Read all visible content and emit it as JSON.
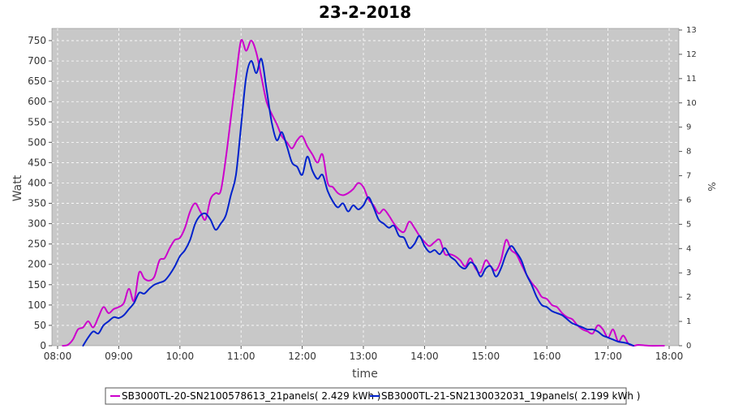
{
  "chart_data": {
    "type": "line",
    "title": "23-2-2018",
    "xlabel": "time",
    "ylabel": "Watt",
    "y2label": "%",
    "x_ticks": [
      "08:00",
      "09:00",
      "10:00",
      "11:00",
      "12:00",
      "13:00",
      "14:00",
      "15:00",
      "16:00",
      "17:00",
      "18:00"
    ],
    "xlim": [
      "08:00",
      "18:00"
    ],
    "ylim": [
      0,
      780
    ],
    "y_ticks": [
      0,
      50,
      100,
      150,
      200,
      250,
      300,
      350,
      400,
      450,
      500,
      550,
      600,
      650,
      700,
      750
    ],
    "y2lim": [
      0,
      13
    ],
    "y2_ticks": [
      0,
      1,
      2,
      3,
      4,
      5,
      6,
      7,
      8,
      9,
      10,
      11,
      12,
      13
    ],
    "grid": true,
    "legend_position": "bottom",
    "colors": {
      "plot_bg": "#c8c8c8",
      "grid": "#ffffff"
    },
    "series": [
      {
        "name": "SB3000TL-20-SN2100578613_21panels( 2.429 kWh )",
        "color": "#cc00cc",
        "points": [
          [
            "08:05",
            0
          ],
          [
            "08:10",
            2
          ],
          [
            "08:15",
            15
          ],
          [
            "08:20",
            40
          ],
          [
            "08:25",
            45
          ],
          [
            "08:30",
            60
          ],
          [
            "08:35",
            45
          ],
          [
            "08:40",
            70
          ],
          [
            "08:45",
            95
          ],
          [
            "08:50",
            80
          ],
          [
            "08:55",
            90
          ],
          [
            "09:00",
            95
          ],
          [
            "09:05",
            105
          ],
          [
            "09:10",
            140
          ],
          [
            "09:15",
            110
          ],
          [
            "09:20",
            180
          ],
          [
            "09:25",
            165
          ],
          [
            "09:30",
            160
          ],
          [
            "09:35",
            170
          ],
          [
            "09:40",
            210
          ],
          [
            "09:45",
            215
          ],
          [
            "09:50",
            240
          ],
          [
            "09:55",
            260
          ],
          [
            "10:00",
            265
          ],
          [
            "10:05",
            290
          ],
          [
            "10:10",
            330
          ],
          [
            "10:15",
            350
          ],
          [
            "10:20",
            330
          ],
          [
            "10:25",
            310
          ],
          [
            "10:30",
            360
          ],
          [
            "10:35",
            375
          ],
          [
            "10:40",
            380
          ],
          [
            "10:45",
            460
          ],
          [
            "10:50",
            560
          ],
          [
            "10:55",
            660
          ],
          [
            "11:00",
            750
          ],
          [
            "11:05",
            725
          ],
          [
            "11:10",
            750
          ],
          [
            "11:15",
            720
          ],
          [
            "11:20",
            660
          ],
          [
            "11:25",
            600
          ],
          [
            "11:30",
            570
          ],
          [
            "11:35",
            545
          ],
          [
            "11:40",
            515
          ],
          [
            "11:45",
            500
          ],
          [
            "11:50",
            485
          ],
          [
            "11:55",
            505
          ],
          [
            "12:00",
            515
          ],
          [
            "12:05",
            490
          ],
          [
            "12:10",
            470
          ],
          [
            "12:15",
            450
          ],
          [
            "12:20",
            470
          ],
          [
            "12:25",
            400
          ],
          [
            "12:30",
            390
          ],
          [
            "12:35",
            375
          ],
          [
            "12:40",
            370
          ],
          [
            "12:45",
            375
          ],
          [
            "12:50",
            385
          ],
          [
            "12:55",
            400
          ],
          [
            "13:00",
            390
          ],
          [
            "13:05",
            360
          ],
          [
            "13:10",
            345
          ],
          [
            "13:15",
            325
          ],
          [
            "13:20",
            335
          ],
          [
            "13:25",
            320
          ],
          [
            "13:30",
            300
          ],
          [
            "13:35",
            285
          ],
          [
            "13:40",
            280
          ],
          [
            "13:45",
            305
          ],
          [
            "13:50",
            290
          ],
          [
            "13:55",
            270
          ],
          [
            "14:00",
            255
          ],
          [
            "14:05",
            245
          ],
          [
            "14:10",
            255
          ],
          [
            "14:15",
            260
          ],
          [
            "14:20",
            225
          ],
          [
            "14:25",
            225
          ],
          [
            "14:30",
            220
          ],
          [
            "14:35",
            210
          ],
          [
            "14:40",
            195
          ],
          [
            "14:45",
            215
          ],
          [
            "14:50",
            190
          ],
          [
            "14:55",
            180
          ],
          [
            "15:00",
            210
          ],
          [
            "15:05",
            195
          ],
          [
            "15:10",
            185
          ],
          [
            "15:15",
            210
          ],
          [
            "15:20",
            260
          ],
          [
            "15:25",
            235
          ],
          [
            "15:30",
            225
          ],
          [
            "15:35",
            200
          ],
          [
            "15:40",
            175
          ],
          [
            "15:45",
            155
          ],
          [
            "15:50",
            140
          ],
          [
            "15:55",
            120
          ],
          [
            "16:00",
            115
          ],
          [
            "16:05",
            100
          ],
          [
            "16:10",
            95
          ],
          [
            "16:15",
            80
          ],
          [
            "16:20",
            70
          ],
          [
            "16:25",
            65
          ],
          [
            "16:30",
            50
          ],
          [
            "16:35",
            40
          ],
          [
            "16:40",
            35
          ],
          [
            "16:45",
            30
          ],
          [
            "16:50",
            50
          ],
          [
            "16:55",
            40
          ],
          [
            "17:00",
            20
          ],
          [
            "17:05",
            40
          ],
          [
            "17:10",
            10
          ],
          [
            "17:15",
            25
          ],
          [
            "17:20",
            5
          ],
          [
            "17:25",
            0
          ],
          [
            "17:30",
            2
          ],
          [
            "17:40",
            0
          ],
          [
            "17:55",
            0
          ]
        ]
      },
      {
        "name": "SB3000TL-21-SN2130032031_19panels( 2.199 kWh )",
        "color": "#0022cc",
        "points": [
          [
            "08:25",
            0
          ],
          [
            "08:30",
            20
          ],
          [
            "08:35",
            35
          ],
          [
            "08:40",
            30
          ],
          [
            "08:45",
            50
          ],
          [
            "08:50",
            60
          ],
          [
            "08:55",
            70
          ],
          [
            "09:00",
            68
          ],
          [
            "09:05",
            75
          ],
          [
            "09:10",
            90
          ],
          [
            "09:15",
            105
          ],
          [
            "09:20",
            130
          ],
          [
            "09:25",
            128
          ],
          [
            "09:30",
            140
          ],
          [
            "09:35",
            150
          ],
          [
            "09:40",
            155
          ],
          [
            "09:45",
            160
          ],
          [
            "09:50",
            175
          ],
          [
            "09:55",
            195
          ],
          [
            "10:00",
            220
          ],
          [
            "10:05",
            235
          ],
          [
            "10:10",
            260
          ],
          [
            "10:15",
            300
          ],
          [
            "10:20",
            320
          ],
          [
            "10:25",
            325
          ],
          [
            "10:30",
            310
          ],
          [
            "10:35",
            285
          ],
          [
            "10:40",
            300
          ],
          [
            "10:45",
            320
          ],
          [
            "10:50",
            370
          ],
          [
            "10:55",
            420
          ],
          [
            "11:00",
            540
          ],
          [
            "11:05",
            660
          ],
          [
            "11:10",
            700
          ],
          [
            "11:15",
            670
          ],
          [
            "11:20",
            705
          ],
          [
            "11:25",
            630
          ],
          [
            "11:30",
            550
          ],
          [
            "11:35",
            505
          ],
          [
            "11:40",
            525
          ],
          [
            "11:45",
            490
          ],
          [
            "11:50",
            450
          ],
          [
            "11:55",
            440
          ],
          [
            "12:00",
            420
          ],
          [
            "12:05",
            465
          ],
          [
            "12:10",
            430
          ],
          [
            "12:15",
            410
          ],
          [
            "12:20",
            420
          ],
          [
            "12:25",
            380
          ],
          [
            "12:30",
            355
          ],
          [
            "12:35",
            340
          ],
          [
            "12:40",
            350
          ],
          [
            "12:45",
            330
          ],
          [
            "12:50",
            345
          ],
          [
            "12:55",
            335
          ],
          [
            "13:00",
            345
          ],
          [
            "13:05",
            365
          ],
          [
            "13:10",
            340
          ],
          [
            "13:15",
            310
          ],
          [
            "13:20",
            300
          ],
          [
            "13:25",
            290
          ],
          [
            "13:30",
            295
          ],
          [
            "13:35",
            270
          ],
          [
            "13:40",
            265
          ],
          [
            "13:45",
            240
          ],
          [
            "13:50",
            250
          ],
          [
            "13:55",
            270
          ],
          [
            "14:00",
            245
          ],
          [
            "14:05",
            230
          ],
          [
            "14:10",
            235
          ],
          [
            "14:15",
            225
          ],
          [
            "14:20",
            240
          ],
          [
            "14:25",
            220
          ],
          [
            "14:30",
            210
          ],
          [
            "14:35",
            195
          ],
          [
            "14:40",
            190
          ],
          [
            "14:45",
            205
          ],
          [
            "14:50",
            195
          ],
          [
            "14:55",
            170
          ],
          [
            "15:00",
            190
          ],
          [
            "15:05",
            195
          ],
          [
            "15:10",
            170
          ],
          [
            "15:15",
            190
          ],
          [
            "15:20",
            225
          ],
          [
            "15:25",
            245
          ],
          [
            "15:30",
            230
          ],
          [
            "15:35",
            210
          ],
          [
            "15:40",
            175
          ],
          [
            "15:45",
            150
          ],
          [
            "15:50",
            120
          ],
          [
            "15:55",
            100
          ],
          [
            "16:00",
            95
          ],
          [
            "16:05",
            85
          ],
          [
            "16:10",
            80
          ],
          [
            "16:15",
            75
          ],
          [
            "16:20",
            65
          ],
          [
            "16:25",
            55
          ],
          [
            "16:30",
            50
          ],
          [
            "16:35",
            45
          ],
          [
            "16:40",
            40
          ],
          [
            "16:45",
            40
          ],
          [
            "16:50",
            35
          ],
          [
            "16:55",
            25
          ],
          [
            "17:00",
            20
          ],
          [
            "17:05",
            15
          ],
          [
            "17:10",
            10
          ],
          [
            "17:15",
            8
          ],
          [
            "17:20",
            5
          ],
          [
            "17:25",
            0
          ]
        ]
      }
    ]
  }
}
